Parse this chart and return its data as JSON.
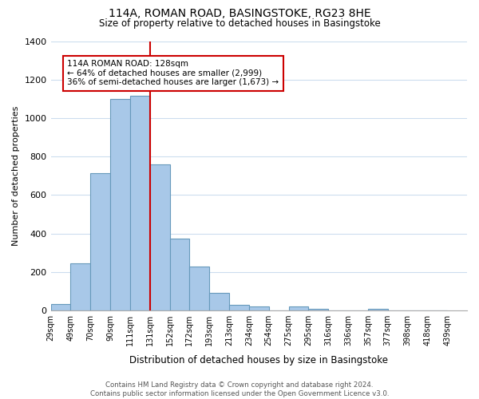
{
  "title": "114A, ROMAN ROAD, BASINGSTOKE, RG23 8HE",
  "subtitle": "Size of property relative to detached houses in Basingstoke",
  "xlabel": "Distribution of detached houses by size in Basingstoke",
  "ylabel": "Number of detached properties",
  "tick_labels": [
    "29sqm",
    "49sqm",
    "70sqm",
    "90sqm",
    "111sqm",
    "131sqm",
    "152sqm",
    "172sqm",
    "193sqm",
    "213sqm",
    "234sqm",
    "254sqm",
    "275sqm",
    "295sqm",
    "316sqm",
    "336sqm",
    "357sqm",
    "377sqm",
    "398sqm",
    "418sqm",
    "439sqm"
  ],
  "bar_values": [
    35,
    245,
    715,
    1100,
    1115,
    760,
    375,
    230,
    90,
    30,
    20,
    0,
    20,
    10,
    0,
    0,
    10,
    0,
    0,
    0
  ],
  "bar_color": "#a8c8e8",
  "bar_edge_color": "#6699bb",
  "vline_pos": 5,
  "vline_color": "#cc0000",
  "annotation_title": "114A ROMAN ROAD: 128sqm",
  "annotation_line1": "← 64% of detached houses are smaller (2,999)",
  "annotation_line2": "36% of semi-detached houses are larger (1,673) →",
  "annotation_box_color": "#ffffff",
  "annotation_box_edge": "#cc0000",
  "ylim": [
    0,
    1400
  ],
  "yticks": [
    0,
    200,
    400,
    600,
    800,
    1000,
    1200,
    1400
  ],
  "footer_line1": "Contains HM Land Registry data © Crown copyright and database right 2024.",
  "footer_line2": "Contains public sector information licensed under the Open Government Licence v3.0.",
  "bg_color": "#ffffff",
  "grid_color": "#ccddee"
}
